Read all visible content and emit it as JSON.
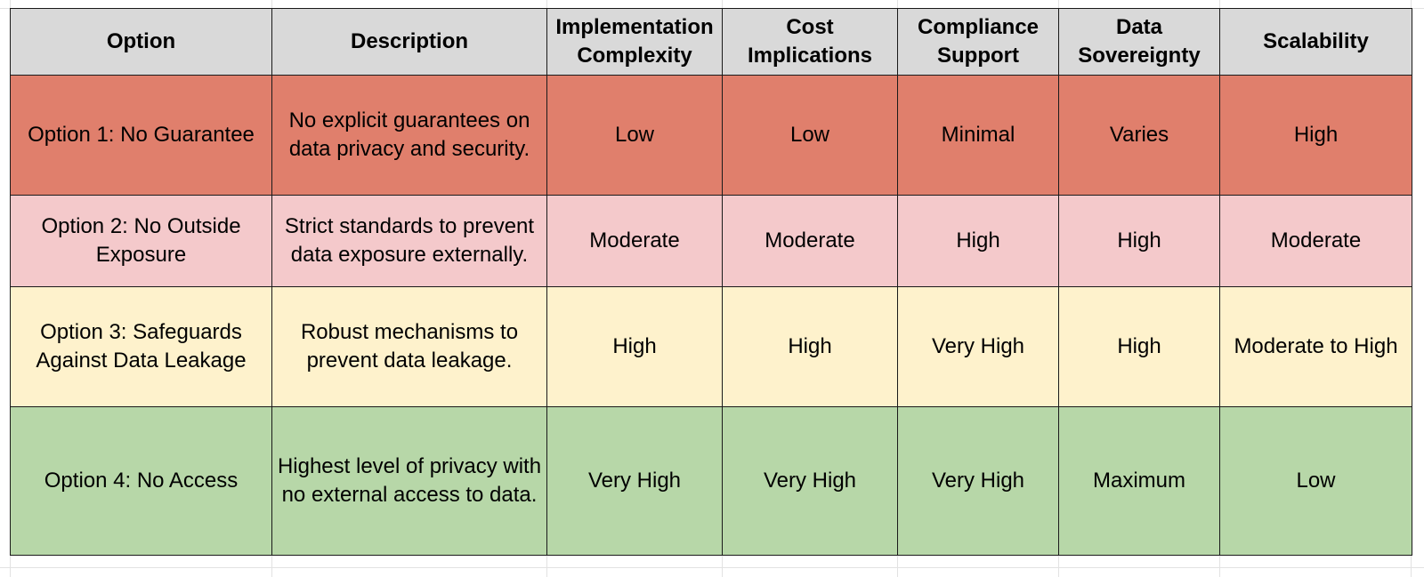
{
  "colors": {
    "header": "#d9d9d9",
    "row_1": "#e07f6c",
    "row_2": "#f4c9cb",
    "row_3": "#fef2cc",
    "row_4": "#b7d7a8",
    "border": "#1a1a1a"
  },
  "table": {
    "headers": [
      "Option",
      "Description",
      "Implementation\nComplexity",
      "Cost\nImplications",
      "Compliance\nSupport",
      "Data\nSovereignty",
      "Scalability"
    ],
    "rows": [
      {
        "option": "Option 1: No Guarantee",
        "description": "No explicit guarantees on data privacy and security.",
        "implementation_complexity": "Low",
        "cost_implications": "Low",
        "compliance_support": "Minimal",
        "data_sovereignty": "Varies",
        "scalability": "High"
      },
      {
        "option": "Option 2: No Outside Exposure",
        "description": "Strict standards to prevent data exposure externally.",
        "implementation_complexity": "Moderate",
        "cost_implications": "Moderate",
        "compliance_support": "High",
        "data_sovereignty": "High",
        "scalability": "Moderate"
      },
      {
        "option": "Option 3: Safeguards Against Data Leakage",
        "description": "Robust mechanisms to prevent data leakage.",
        "implementation_complexity": "High",
        "cost_implications": "High",
        "compliance_support": "Very High",
        "data_sovereignty": "High",
        "scalability": "Moderate to High"
      },
      {
        "option": "Option 4: No Access",
        "description": "Highest level of privacy with no external access to data.",
        "implementation_complexity": "Very High",
        "cost_implications": "Very High",
        "compliance_support": "Very High",
        "data_sovereignty": "Maximum",
        "scalability": "Low"
      }
    ]
  }
}
